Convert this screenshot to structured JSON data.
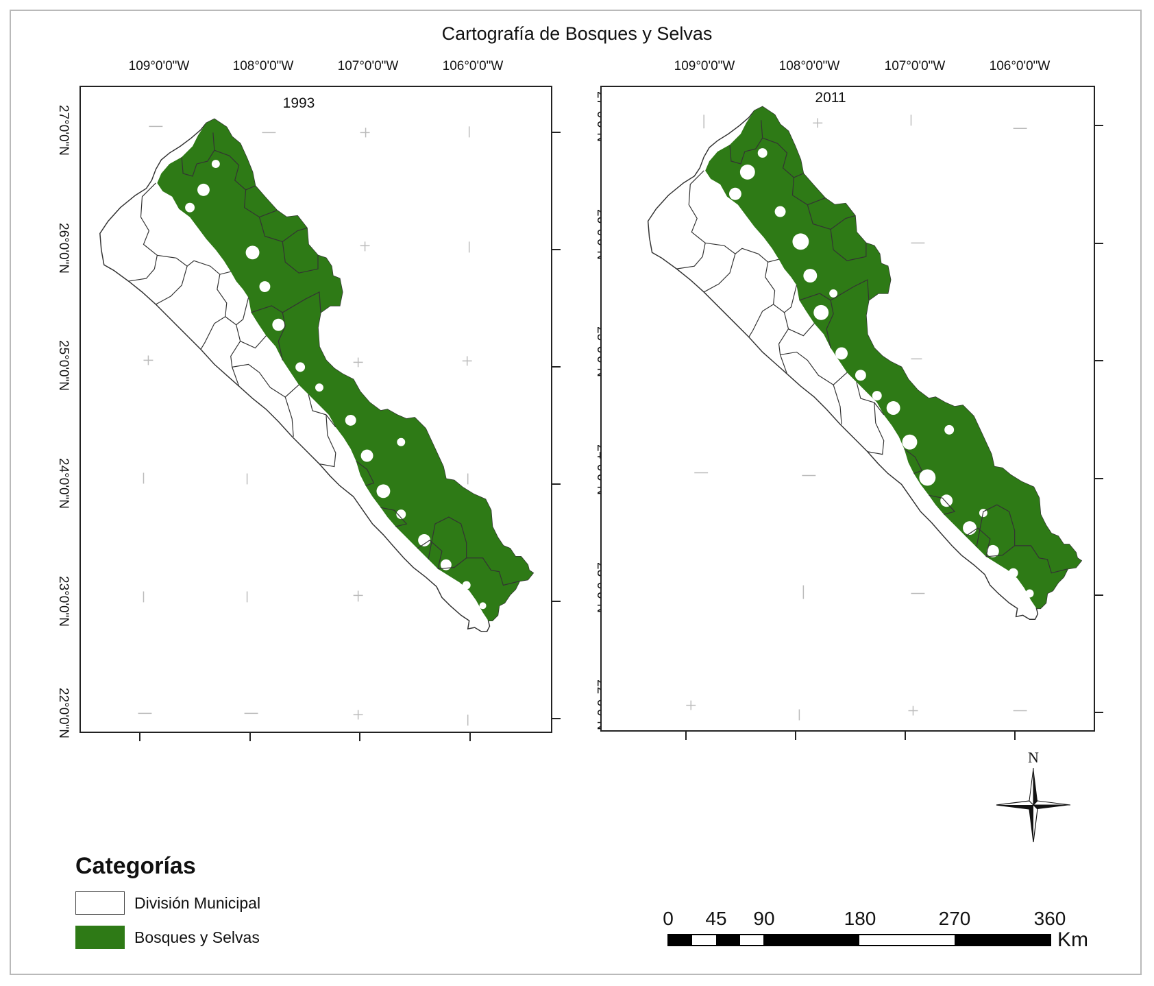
{
  "title": "Cartografía de Bosques y Selvas",
  "maps": [
    {
      "year": "1993"
    },
    {
      "year": "2011"
    }
  ],
  "graticule": {
    "longitudes": [
      "109°0'0\"W",
      "108°0'0\"W",
      "107°0'0\"W",
      "106°0'0\"W"
    ],
    "latitudes": [
      "27°0'0\"N",
      "26°0'0\"N",
      "25°0'0\"N",
      "24°0'0\"N",
      "23°0'0\"N",
      "22°0'0\"N"
    ]
  },
  "legend": {
    "title": "Categorías",
    "items": [
      {
        "label": "División Municipal",
        "color": "#ffffff"
      },
      {
        "label": "Bosques y Selvas",
        "color": "#2e7a16"
      }
    ]
  },
  "scale_bar": {
    "labels": [
      "0",
      "45",
      "90",
      "180",
      "270",
      "360"
    ],
    "unit": "Km"
  },
  "north_arrow": {
    "letter": "N"
  }
}
